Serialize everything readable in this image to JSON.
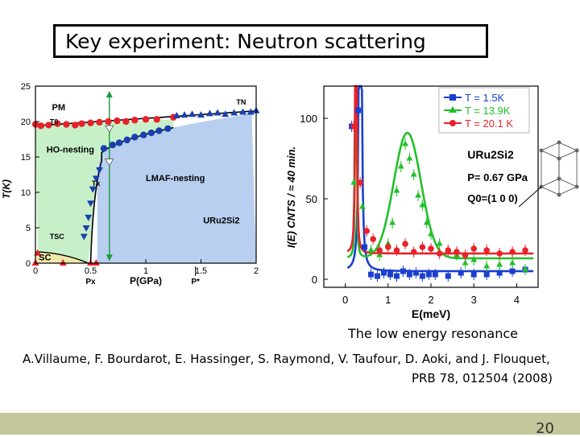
{
  "slide": {
    "title": "Key experiment: Neutron scattering",
    "caption": "The low energy resonance",
    "reference_line1": "A.Villaume, F. Bourdarot, E. Hassinger, S. Raymond, V. Taufour, D. Aoki, and J. Flouquet,",
    "reference_line2": "PRB 78, 012504 (2008)",
    "page_number": "20",
    "footer_color": "#c4c79a"
  },
  "chart_data": [
    {
      "type": "scatter",
      "panel": "phase-diagram",
      "xlabel": "P(GPa)",
      "ylabel": "T(K)",
      "xlim": [
        0,
        2
      ],
      "ylim": [
        0,
        25
      ],
      "x_ticks": [
        "0",
        "0.5",
        "1",
        "1.5",
        "2"
      ],
      "y_ticks": [
        "0",
        "5",
        "10",
        "15",
        "20",
        "25"
      ],
      "region_labels": [
        "PM",
        "HO-nesting",
        "LMAF-nesting",
        "SC",
        "URu2Si2"
      ],
      "line_labels": [
        "TN",
        "T0",
        "Tx",
        "TSC"
      ],
      "pressure_labels": [
        "Px",
        "P*"
      ],
      "colors": {
        "pm": "#ffffff",
        "ho": "#c8f0c8",
        "lmaf": "#b8cff0",
        "sc": "#f0e8a8",
        "red": "#e8222a",
        "blue": "#1a3fb0",
        "arrow": "#1a9a3a"
      },
      "series": [
        {
          "name": "red",
          "x": [
            0.0,
            0.05,
            0.12,
            0.2,
            0.28,
            0.36,
            0.42,
            0.5,
            0.58,
            0.66,
            0.74,
            0.82,
            0.9,
            1.0,
            1.1,
            1.25
          ],
          "y": [
            19.6,
            19.4,
            19.5,
            19.7,
            19.6,
            19.5,
            19.7,
            19.8,
            19.9,
            20.0,
            20.1,
            20.0,
            20.2,
            20.3,
            20.3,
            20.6
          ]
        },
        {
          "name": "blue-triangle",
          "x": [
            1.28,
            1.35,
            1.42,
            1.5,
            1.58,
            1.65,
            1.72,
            1.8,
            1.88,
            1.95,
            2.0
          ],
          "y": [
            20.8,
            20.9,
            21.0,
            20.9,
            21.1,
            21.2,
            21.0,
            21.2,
            21.3,
            21.3,
            21.5
          ]
        },
        {
          "name": "blue-circle",
          "x": [
            0.62,
            0.7,
            0.76,
            0.83,
            0.9,
            0.98,
            1.05,
            1.12,
            1.2
          ],
          "y": [
            16.2,
            16.7,
            17.0,
            17.4,
            17.8,
            18.1,
            18.4,
            18.7,
            19.0
          ]
        },
        {
          "name": "blue-triangle-low",
          "x": [
            0.44,
            0.46,
            0.48,
            0.5,
            0.52,
            0.55,
            0.58
          ],
          "y": [
            3.8,
            5.0,
            6.5,
            8.5,
            10.5,
            12.0,
            13.2
          ]
        },
        {
          "name": "red-triangle-sc",
          "x": [
            0.0,
            0.02,
            0.25,
            0.5,
            0.55
          ],
          "y": [
            0.0,
            1.4,
            0.0,
            0.0,
            0.0
          ]
        }
      ]
    },
    {
      "type": "line",
      "panel": "neutron-spectrum",
      "xlabel": "E(meV)",
      "ylabel": "I(E) CNTS / ≈ 40 min.",
      "xlim": [
        -0.5,
        4.5
      ],
      "ylim": [
        -5,
        120
      ],
      "x_ticks": [
        "0",
        "1",
        "2",
        "3",
        "4"
      ],
      "y_ticks": [
        "0",
        "50",
        "100"
      ],
      "legend_position": "top-right",
      "annotations": [
        "URu2Si2",
        "P= 0.67 GPa",
        "Q0=(1 0 0)"
      ],
      "series": [
        {
          "name": "T = 1.5K",
          "color": "#1a3fd0",
          "x": [
            0.15,
            0.3,
            0.45,
            0.6,
            0.75,
            0.9,
            1.05,
            1.2,
            1.35,
            1.5,
            1.65,
            1.8,
            1.95,
            2.1,
            2.4,
            2.7,
            3.0,
            3.3,
            3.6,
            3.9,
            4.2
          ],
          "y": [
            95,
            105,
            20,
            3,
            2,
            4,
            3,
            2,
            5,
            3,
            4,
            2,
            3,
            3,
            2,
            4,
            3,
            3,
            4,
            5,
            6
          ]
        },
        {
          "name": "T = 13.9K",
          "color": "#22c02a",
          "x": [
            0.2,
            0.4,
            0.6,
            0.8,
            1.0,
            1.1,
            1.2,
            1.3,
            1.4,
            1.5,
            1.6,
            1.7,
            1.8,
            1.9,
            2.0,
            2.2,
            2.4,
            2.6,
            2.8,
            3.0,
            3.3,
            3.6,
            3.9,
            4.2
          ],
          "y": [
            60,
            45,
            18,
            15,
            22,
            35,
            55,
            70,
            84,
            75,
            65,
            52,
            46,
            35,
            28,
            22,
            18,
            15,
            10,
            12,
            8,
            9,
            10,
            6
          ]
        },
        {
          "name": "T = 20.1 K",
          "color": "#e8222a",
          "x": [
            0.2,
            0.35,
            0.5,
            0.65,
            0.8,
            1.0,
            1.2,
            1.4,
            1.6,
            1.8,
            2.0,
            2.2,
            2.4,
            2.6,
            2.8,
            3.0,
            3.3,
            3.6,
            3.9,
            4.2
          ],
          "y": [
            95,
            60,
            30,
            25,
            18,
            20,
            18,
            22,
            17,
            20,
            19,
            16,
            18,
            17,
            15,
            19,
            18,
            16,
            17,
            18
          ]
        }
      ]
    }
  ]
}
